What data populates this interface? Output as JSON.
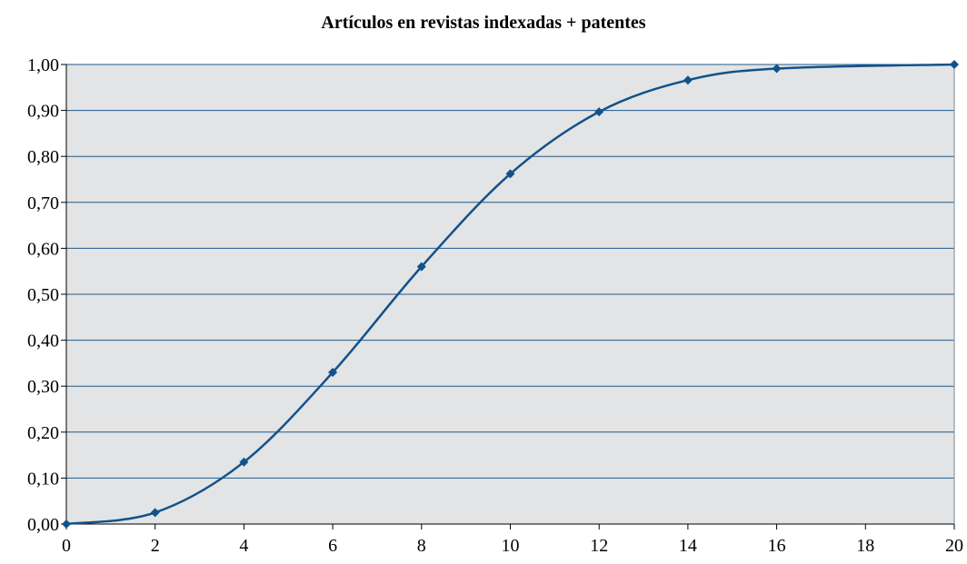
{
  "chart_data": {
    "type": "line",
    "title": "Artículos en revistas indexadas + patentes",
    "xlabel": "",
    "ylabel": "",
    "xlim": [
      0,
      20
    ],
    "ylim": [
      0,
      1
    ],
    "x_ticks": [
      "0",
      "2",
      "4",
      "6",
      "8",
      "10",
      "12",
      "14",
      "16",
      "18",
      "20"
    ],
    "y_ticks": [
      "0,00",
      "0,10",
      "0,20",
      "0,30",
      "0,40",
      "0,50",
      "0,60",
      "0,70",
      "0,80",
      "0,90",
      "1,00"
    ],
    "grid": true,
    "legend": "none",
    "colors": {
      "plot_background": "#e3e4e5",
      "gridline": "#1f5a8c",
      "series": "#12528a"
    },
    "series": [
      {
        "marker": "diamond",
        "x": [
          0,
          2,
          4,
          6,
          8,
          10,
          12,
          14,
          16,
          20
        ],
        "values": [
          0.0,
          0.025,
          0.135,
          0.33,
          0.56,
          0.762,
          0.897,
          0.966,
          0.991,
          1.0
        ]
      }
    ]
  }
}
